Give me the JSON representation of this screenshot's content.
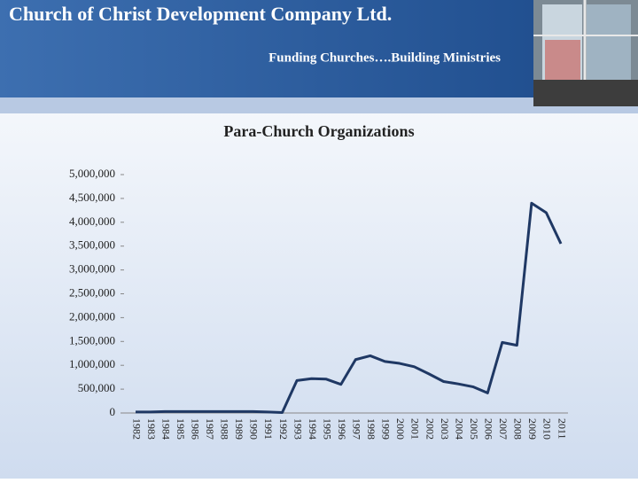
{
  "header": {
    "title": "Church of Christ Development Company Ltd.",
    "subtitle": "Funding Churches….Building Ministries"
  },
  "chart_data": {
    "type": "line",
    "title": "Para-Church Organizations",
    "categories": [
      "1982",
      "1983",
      "1984",
      "1985",
      "1986",
      "1987",
      "1988",
      "1989",
      "1990",
      "1991",
      "1992",
      "1993",
      "1994",
      "1995",
      "1996",
      "1997",
      "1998",
      "1999",
      "2000",
      "2001",
      "2002",
      "2003",
      "2004",
      "2005",
      "2006",
      "2007",
      "2008",
      "2009",
      "2010",
      "2011"
    ],
    "values": [
      20000,
      20000,
      30000,
      30000,
      30000,
      30000,
      30000,
      30000,
      30000,
      20000,
      10000,
      680000,
      720000,
      710000,
      600000,
      1120000,
      1200000,
      1080000,
      1040000,
      970000,
      820000,
      660000,
      610000,
      550000,
      420000,
      1480000,
      1420000,
      4400000,
      4200000,
      3550000
    ],
    "color": "#1f3864",
    "ylim": [
      0,
      5000000
    ],
    "yticks": [
      0,
      {
        "value": 500000,
        "label": "500,000"
      },
      {
        "value": 1000000,
        "label": "1,000,000"
      },
      {
        "value": 1500000,
        "label": "1,500,000"
      },
      {
        "value": 2000000,
        "label": "2,000,000"
      },
      {
        "value": 2500000,
        "label": "2,500,000"
      },
      {
        "value": 3000000,
        "label": "3,000,000"
      },
      {
        "value": 3500000,
        "label": "3,500,000"
      },
      {
        "value": 4000000,
        "label": "4,000,000"
      },
      {
        "value": 4500000,
        "label": "4,500,000"
      },
      {
        "value": 5000000,
        "label": "5,000,000"
      }
    ],
    "grid": false
  }
}
